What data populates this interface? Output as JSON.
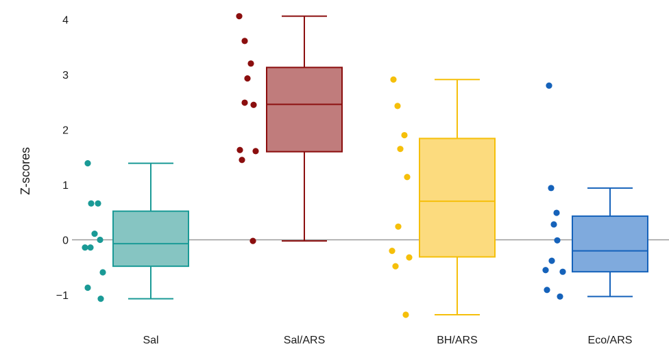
{
  "chart_data": {
    "type": "box",
    "ylabel": "Z-scores",
    "ylim": [
      -1.4,
      4.2
    ],
    "yticks": [
      -1,
      0,
      1,
      2,
      3,
      4
    ],
    "reference_line": 0,
    "reference_line_color": "#999999",
    "categories": [
      "Sal",
      "Sal/ARS",
      "BH/ARS",
      "Eco/ARS"
    ],
    "groups": [
      {
        "category": "Sal",
        "color": "#1A9A96",
        "fill": "#86C5C2",
        "whisker_low": -1.07,
        "q1": -0.48,
        "median": -0.07,
        "q3": 0.52,
        "whisker_high": 1.39,
        "points": [
          1.39,
          0.66,
          0.66,
          0.11,
          0.0,
          -0.14,
          -0.14,
          -0.59,
          -0.87,
          -1.07
        ]
      },
      {
        "category": "Sal/ARS",
        "color": "#8B0E0E",
        "fill": "#C07C7C",
        "whisker_low": -0.02,
        "q1": 1.6,
        "median": 2.46,
        "q3": 3.13,
        "whisker_high": 4.06,
        "points": [
          4.06,
          3.61,
          3.2,
          2.93,
          2.49,
          2.45,
          1.63,
          1.61,
          1.45,
          -0.02
        ]
      },
      {
        "category": "BH/ARS",
        "color": "#F5BF0A",
        "fill": "#FCDB7E",
        "whisker_low": -1.36,
        "q1": -0.31,
        "median": 0.7,
        "q3": 1.84,
        "whisker_high": 2.91,
        "points": [
          2.91,
          2.43,
          1.9,
          1.65,
          1.14,
          0.24,
          -0.2,
          -0.32,
          -0.48,
          -1.36
        ]
      },
      {
        "category": "Eco/ARS",
        "color": "#1562BA",
        "fill": "#7FAADD",
        "whisker_low": -1.03,
        "q1": -0.58,
        "median": -0.2,
        "q3": 0.43,
        "whisker_high": 0.94,
        "points": [
          2.8,
          0.94,
          0.49,
          0.28,
          -0.01,
          -0.38,
          -0.55,
          -0.58,
          -0.91,
          -1.03
        ]
      }
    ]
  }
}
